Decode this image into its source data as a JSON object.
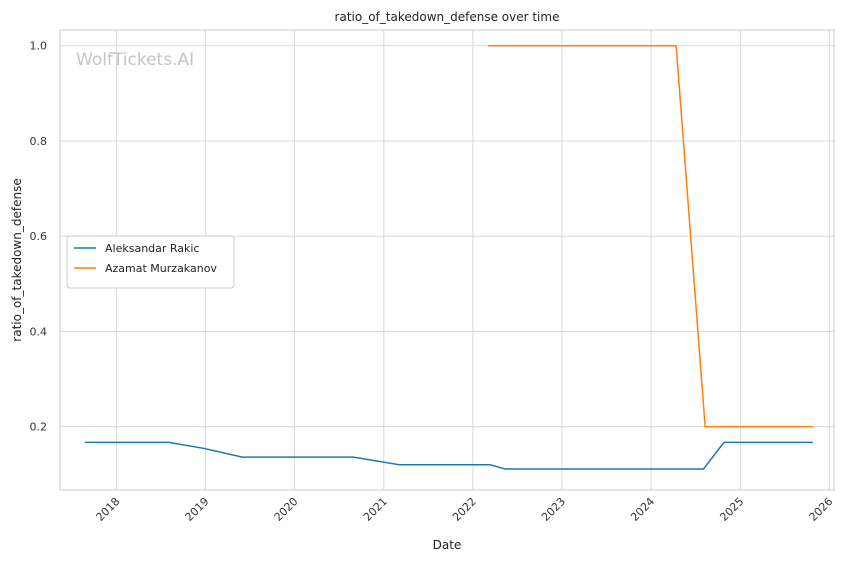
{
  "chart_data": {
    "type": "line",
    "title": "ratio_of_takedown_defense over time",
    "xlabel": "Date",
    "ylabel": "ratio_of_takedown_defense",
    "watermark": "WolfTickets.AI",
    "grid": true,
    "legend_position": "center-left",
    "xlim": [
      "2017-05-15",
      "2026-01-20"
    ],
    "ylim": [
      0.067,
      1.033
    ],
    "x_ticks": [
      "2018-01-01",
      "2019-01-01",
      "2020-01-01",
      "2021-01-01",
      "2022-01-01",
      "2023-01-01",
      "2024-01-01",
      "2025-01-01",
      "2026-01-01"
    ],
    "x_tick_labels": [
      "2018",
      "2019",
      "2020",
      "2021",
      "2022",
      "2023",
      "2024",
      "2025",
      "2026"
    ],
    "y_ticks": [
      0.2,
      0.4,
      0.6,
      0.8,
      1.0
    ],
    "y_tick_labels": [
      "0.2",
      "0.4",
      "0.6",
      "0.8",
      "1.0"
    ],
    "series": [
      {
        "name": "Aleksandar Rakic",
        "color": "#1f77b4",
        "points": [
          {
            "x": "2017-08-25",
            "y": 0.167
          },
          {
            "x": "2018-08-04",
            "y": 0.167
          },
          {
            "x": "2018-12-29",
            "y": 0.154
          },
          {
            "x": "2019-06-01",
            "y": 0.136
          },
          {
            "x": "2020-08-29",
            "y": 0.136
          },
          {
            "x": "2021-03-06",
            "y": 0.12
          },
          {
            "x": "2022-03-12",
            "y": 0.12
          },
          {
            "x": "2022-05-14",
            "y": 0.111
          },
          {
            "x": "2024-08-03",
            "y": 0.111
          },
          {
            "x": "2024-10-26",
            "y": 0.167
          },
          {
            "x": "2025-10-25",
            "y": 0.167
          }
        ]
      },
      {
        "name": "Azamat Murzakanov",
        "color": "#ff7f0e",
        "points": [
          {
            "x": "2022-03-05",
            "y": 1.0
          },
          {
            "x": "2024-04-13",
            "y": 1.0
          },
          {
            "x": "2024-08-10",
            "y": 0.2
          },
          {
            "x": "2025-10-25",
            "y": 0.2
          }
        ]
      }
    ]
  }
}
